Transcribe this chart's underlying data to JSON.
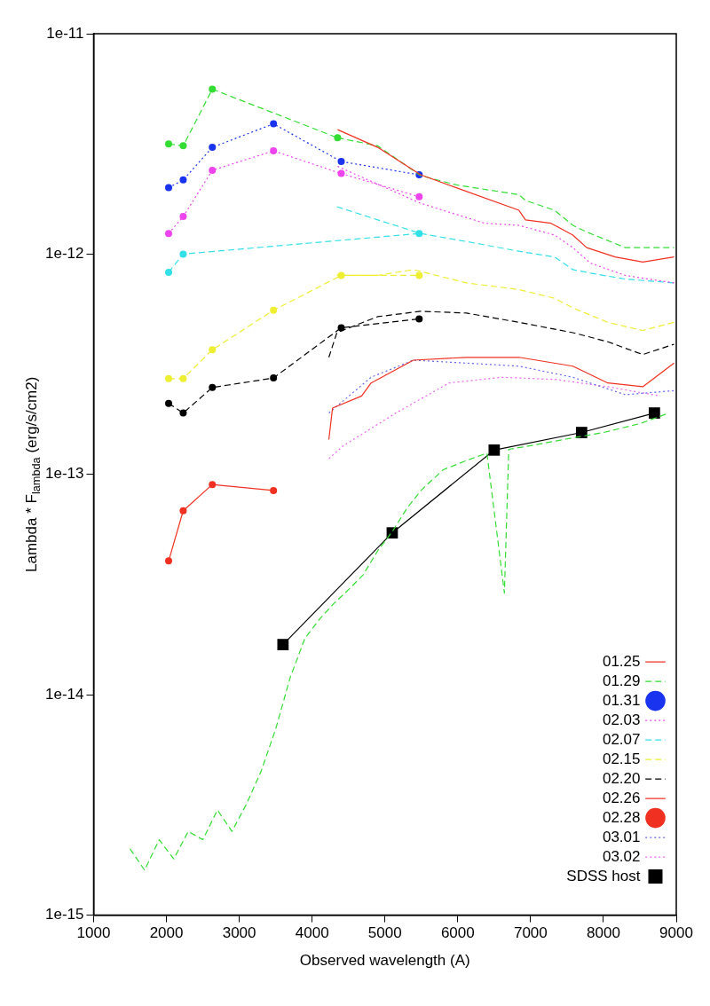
{
  "chart_data": {
    "type": "line",
    "xlabel": "Observed wavelength (A)",
    "ylabel": "Lambda * F$_{lambda}$ (erg/s/cm2)",
    "log": "y",
    "grid": false,
    "legend": "bottom right",
    "xlim": [
      1000,
      9000
    ],
    "xticks": [
      1000,
      2000,
      3000,
      4000,
      5000,
      6000,
      7000,
      8000,
      9000
    ],
    "ylim": [
      1e-15,
      1e-11
    ],
    "yticks": [
      {
        "value": 1e-15,
        "label": "1e-15"
      },
      {
        "value": 1e-14,
        "label": "1e-14"
      },
      {
        "value": 1e-13,
        "label": "1e-13"
      },
      {
        "value": 1e-12,
        "label": "1e-12"
      },
      {
        "value": 1e-11,
        "label": "1e-11"
      }
    ],
    "series": [
      {
        "name": "01.25",
        "color": "#f03020",
        "line_style": "solid",
        "marker": "none",
        "x": [
          4350,
          4900,
          5490,
          5980,
          6840,
          6930,
          7280,
          7580,
          7770,
          8160,
          8540,
          8970
        ],
        "values": [
          3.67e-12,
          3.05e-12,
          2.29e-12,
          2e-12,
          1.58e-12,
          1.43e-12,
          1.38e-12,
          1.22e-12,
          1.07e-12,
          9.7e-13,
          9.2e-13,
          9.7e-13
        ]
      },
      {
        "name": "01.29",
        "color": "#33dd33",
        "line_style": "dashed",
        "marker": "none",
        "x": [
          4350,
          4900,
          5490,
          5980,
          6840,
          6930,
          7330,
          7580,
          7770,
          8300,
          8970
        ],
        "values": [
          3.37e-12,
          3.1e-12,
          2.27e-12,
          2.06e-12,
          1.86e-12,
          1.75e-12,
          1.58e-12,
          1.35e-12,
          1.26e-12,
          1.07e-12,
          1.07e-12
        ]
      },
      {
        "color": "#33dd33",
        "line_style": "dashed",
        "marker": "circle",
        "x": [
          2030,
          2230,
          2630,
          4350
        ],
        "values": [
          3.16e-12,
          3.1e-12,
          5.6e-12,
          3.37e-12
        ]
      },
      {
        "color": "#33dd33",
        "line_style": "dashed",
        "marker": "none",
        "x": [
          1500,
          1700,
          1900,
          2100,
          2300,
          2500,
          2700,
          2900,
          3100,
          3300,
          3500,
          3700,
          3900,
          4100,
          4300,
          4500,
          4700,
          4900,
          5100,
          5300,
          5500,
          5800,
          6100,
          6400,
          6640,
          6700,
          7000,
          7500,
          8000,
          8500,
          8900
        ],
        "values": [
          2e-15,
          1.6e-15,
          2.2e-15,
          1.8e-15,
          2.4e-15,
          2.2e-15,
          3e-15,
          2.4e-15,
          3.2e-15,
          4.5e-15,
          7e-15,
          1.2e-14,
          1.8e-14,
          2.2e-14,
          2.6e-14,
          3e-14,
          3.5e-14,
          4.5e-14,
          5.5e-14,
          7e-14,
          8.5e-14,
          1.05e-13,
          1.15e-13,
          1.25e-13,
          2.9e-14,
          1.3e-13,
          1.35e-13,
          1.45e-13,
          1.55e-13,
          1.7e-13,
          1.9e-13
        ]
      },
      {
        "name": "01.31",
        "color": "#1a33ee",
        "line_style": "dotted",
        "marker": "circle",
        "x": [
          2030,
          2230,
          2630,
          3470,
          4400,
          5470
        ],
        "values": [
          2e-12,
          2.17e-12,
          3.05e-12,
          3.9e-12,
          2.63e-12,
          2.29e-12
        ]
      },
      {
        "name": "02.03",
        "color": "#ee44ee",
        "line_style": "dotted",
        "marker": "none",
        "x": [
          4350,
          5490,
          6370,
          6840,
          7330,
          7580,
          7820,
          8300,
          8970
        ],
        "values": [
          2.5e-12,
          1.7e-12,
          1.38e-12,
          1.35e-12,
          1.22e-12,
          1.07e-12,
          9.1e-13,
          8e-13,
          7.4e-13
        ]
      },
      {
        "color": "#ee44ee",
        "line_style": "dotted",
        "marker": "circle",
        "x": [
          2030,
          2230,
          2630,
          3470,
          4400,
          5470
        ],
        "values": [
          1.24e-12,
          1.48e-12,
          2.4e-12,
          2.94e-12,
          2.32e-12,
          1.82e-12
        ]
      },
      {
        "name": "02.07",
        "color": "#33e0e8",
        "line_style": "dashed",
        "marker": "none",
        "x": [
          4340,
          4900,
          5490,
          6120,
          6840,
          7330,
          7580,
          7820,
          8300,
          8970
        ],
        "values": [
          1.64e-12,
          1.43e-12,
          1.24e-12,
          1.14e-12,
          1.03e-12,
          9.7e-13,
          8.5e-13,
          8.2e-13,
          7.7e-13,
          7.4e-13
        ]
      },
      {
        "color": "#33e0e8",
        "line_style": "dashed",
        "marker": "circle",
        "x": [
          2030,
          2230,
          5470
        ],
        "values": [
          8.26e-13,
          1e-12,
          1.24e-12
        ]
      },
      {
        "name": "02.15",
        "color": "#eeee33",
        "line_style": "dashed",
        "marker": "none",
        "x": [
          4340,
          4900,
          5390,
          6120,
          6840,
          7330,
          7580,
          8060,
          8540,
          8970
        ],
        "values": [
          8e-13,
          8e-13,
          8.5e-13,
          7.4e-13,
          6.9e-13,
          6.3e-13,
          5.7e-13,
          4.9e-13,
          4.5e-13,
          4.9e-13
        ]
      },
      {
        "color": "#eeee33",
        "line_style": "dashed",
        "marker": "circle",
        "x": [
          2030,
          2230,
          2630,
          3470,
          4400,
          5470
        ],
        "values": [
          2.72e-13,
          2.72e-13,
          3.68e-13,
          5.56e-13,
          8e-13,
          8e-13
        ]
      },
      {
        "name": "02.20",
        "color": "#000000",
        "line_style": "dashed",
        "marker": "none",
        "x": [
          4230,
          4340,
          4900,
          5490,
          6120,
          6840,
          7580,
          8060,
          8540,
          8970
        ],
        "values": [
          3.4e-13,
          4.4e-13,
          5.2e-13,
          5.5e-13,
          5.4e-13,
          4.9e-13,
          4.4e-13,
          4e-13,
          3.5e-13,
          3.9e-13
        ]
      },
      {
        "color": "#000000",
        "line_style": "dashed",
        "marker": "circle",
        "x": [
          2030,
          2230,
          2630,
          3470,
          4400,
          5470
        ],
        "values": [
          2.1e-13,
          1.9e-13,
          2.48e-13,
          2.74e-13,
          4.63e-13,
          5.08e-13
        ]
      },
      {
        "name": "02.26",
        "color": "#f03020",
        "line_style": "solid",
        "marker": "none",
        "x": [
          4230,
          4280,
          4680,
          4810,
          5390,
          6120,
          6840,
          7580,
          8060,
          8540,
          8970
        ],
        "values": [
          1.44e-13,
          2e-13,
          2.27e-13,
          2.6e-13,
          3.3e-13,
          3.4e-13,
          3.4e-13,
          3.1e-13,
          2.6e-13,
          2.5e-13,
          3.2e-13
        ]
      },
      {
        "name": "02.28",
        "color": "#f03020",
        "line_style": "solid",
        "marker": "circle",
        "x": [
          2030,
          2230,
          2630,
          3470
        ],
        "values": [
          4.05e-14,
          6.84e-14,
          9e-14,
          8.45e-14
        ]
      },
      {
        "name": "03.01",
        "color": "#6666ee",
        "line_style": "dotted",
        "marker": "none",
        "x": [
          4230,
          4810,
          5390,
          6120,
          6840,
          7580,
          8300,
          8970
        ],
        "values": [
          1.9e-13,
          2.76e-13,
          3.3e-13,
          3.2e-13,
          3.1e-13,
          2.76e-13,
          2.3e-13,
          2.4e-13
        ]
      },
      {
        "name": "03.02",
        "color": "#ee66ee",
        "line_style": "dotted",
        "marker": "none",
        "x": [
          4230,
          4430,
          5150,
          5880,
          6600,
          7330,
          8060,
          8780
        ],
        "values": [
          1.18e-13,
          1.35e-13,
          1.9e-13,
          2.6e-13,
          2.76e-13,
          2.7e-13,
          2.5e-13,
          2.27e-13
        ]
      },
      {
        "name": "SDSS host",
        "color": "#000000",
        "line_style": "solid",
        "marker": "square",
        "x": [
          3600,
          5100,
          6500,
          7700,
          8700
        ],
        "values": [
          1.69e-14,
          5.43e-14,
          1.29e-13,
          1.55e-13,
          1.9e-13
        ]
      }
    ]
  }
}
